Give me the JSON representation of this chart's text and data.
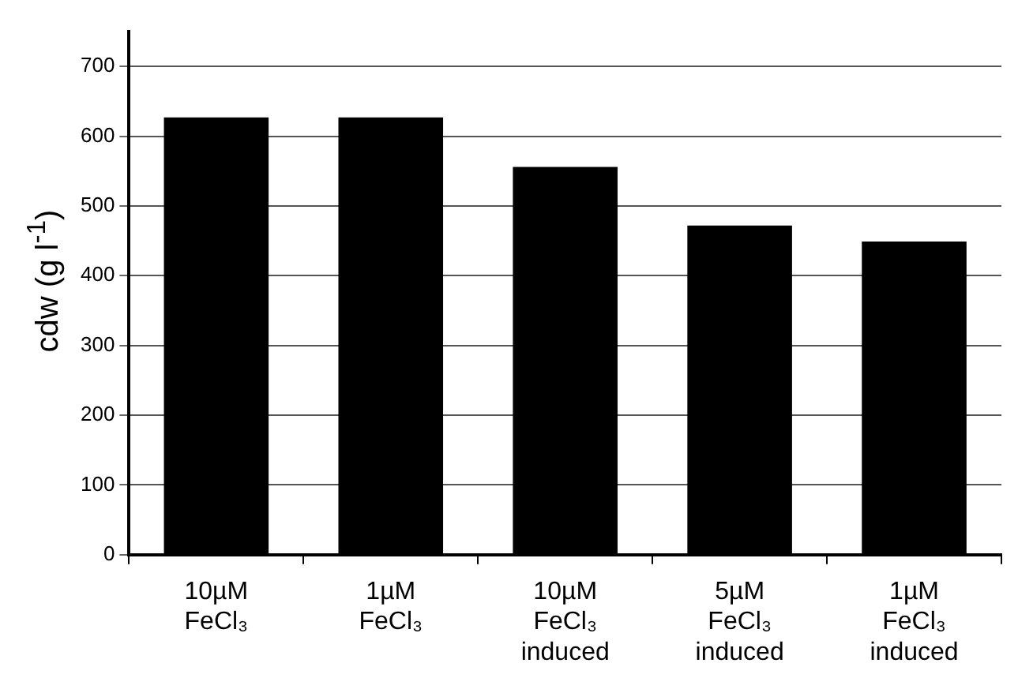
{
  "chart_data": {
    "type": "bar",
    "ylabel": "cdw (g l$^{-1}$)",
    "categories": [
      "10µM\nFeCl₃",
      "1µM\nFeCl₃",
      "10µM\nFeCl₃\ninduced",
      "5µM\nFeCl₃\ninduced",
      "1µM\nFeCl₃\ninduced"
    ],
    "values": [
      627,
      627,
      556,
      472,
      449
    ],
    "color": "#000000",
    "ylim": [
      0,
      750
    ],
    "yticks": [
      0,
      100,
      200,
      300,
      400,
      500,
      600,
      700
    ],
    "grid": "y"
  }
}
